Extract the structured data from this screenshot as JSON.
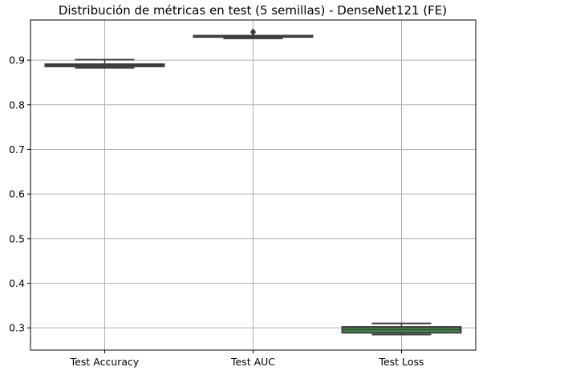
{
  "chart_data": {
    "type": "box",
    "title": "Distribución de métricas en test (5 semillas) - DenseNet121 (FE)",
    "xlabel": "",
    "ylabel": "",
    "categories": [
      "Test Accuracy",
      "Test AUC",
      "Test Loss"
    ],
    "ylim": [
      0.25,
      0.99
    ],
    "yticks": [
      0.3,
      0.4,
      0.5,
      0.6,
      0.7,
      0.8,
      0.9
    ],
    "grid": true,
    "boxes": [
      {
        "category": "Test Accuracy",
        "whisker_low": 0.883,
        "q1": 0.886,
        "median": 0.888,
        "q3": 0.891,
        "whisker_high": 0.901,
        "outliers": [],
        "color": "#3a6d96"
      },
      {
        "category": "Test AUC",
        "whisker_low": 0.949,
        "q1": 0.952,
        "median": 0.953,
        "q3": 0.955,
        "whisker_high": 0.955,
        "outliers": [
          0.963
        ],
        "color": "#c0703a"
      },
      {
        "category": "Test Loss",
        "whisker_low": 0.285,
        "q1": 0.289,
        "median": 0.296,
        "q3": 0.302,
        "whisker_high": 0.31,
        "outliers": [],
        "color": "#3f8f47"
      }
    ]
  }
}
